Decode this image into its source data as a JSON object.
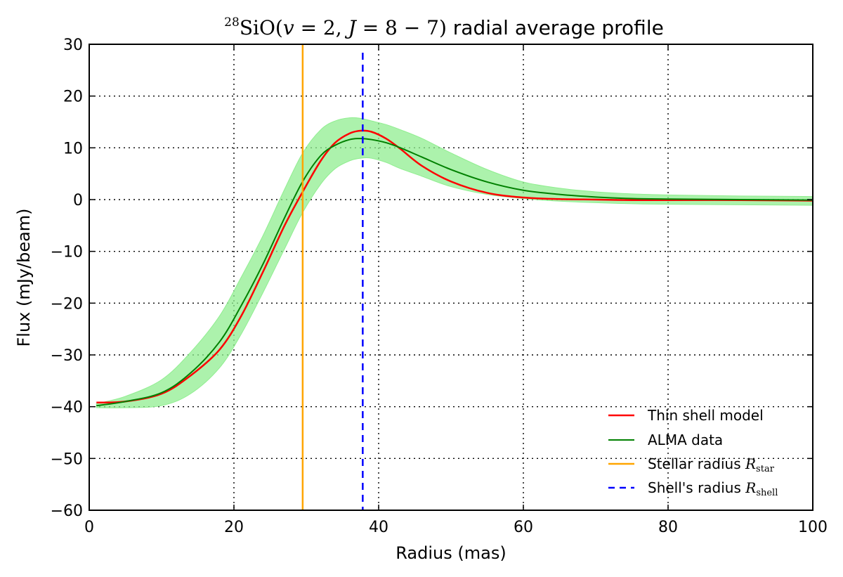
{
  "chart_data": {
    "type": "line",
    "title": {
      "superscript": "28",
      "species": "SiO",
      "open_paren": "(",
      "v_symbol": "v",
      "v_part": " = 2, ",
      "J_symbol": "J",
      "J_part": " = 8 − 7",
      "close_paren": ")",
      "suffix": " radial average profile"
    },
    "xlabel": "Radius (mas)",
    "ylabel": "Flux (mJy/beam)",
    "xlim": [
      0,
      100
    ],
    "ylim": [
      -60,
      30
    ],
    "xticks": [
      0,
      20,
      40,
      60,
      80,
      100
    ],
    "yticks": [
      -60,
      -50,
      -40,
      -30,
      -20,
      -10,
      0,
      10,
      20,
      30
    ],
    "ytick_labels": [
      "−60",
      "−50",
      "−40",
      "−30",
      "−20",
      "−10",
      "0",
      "10",
      "20",
      "30"
    ],
    "xtick_labels": [
      "0",
      "20",
      "40",
      "60",
      "80",
      "100"
    ],
    "grid": true,
    "legend_location": "lower-right",
    "colors": {
      "model": "#ff0000",
      "data": "#008000",
      "band": "#90ee90",
      "stellar": "#ffa500",
      "shell": "#0000ff"
    },
    "series": [
      {
        "name": "Thin shell model",
        "x": [
          1,
          5,
          10,
          14,
          18,
          21,
          24,
          27,
          29.5,
          32,
          34,
          36,
          37.5,
          39,
          41,
          43,
          46,
          50,
          55,
          60,
          65,
          70,
          75,
          80,
          90,
          100
        ],
        "values": [
          -39.2,
          -39,
          -37.5,
          -34,
          -29,
          -22.5,
          -14,
          -5,
          1.5,
          7.5,
          11,
          12.8,
          13.3,
          13.1,
          11.8,
          9.8,
          6.5,
          3.5,
          1.3,
          0.4,
          0.1,
          0,
          -0.1,
          -0.1,
          -0.1,
          -0.2
        ]
      },
      {
        "name": "ALMA data",
        "x": [
          1,
          5,
          10,
          14,
          18,
          21,
          24,
          27,
          29.5,
          32,
          34,
          36,
          37.5,
          39,
          41,
          43,
          46,
          50,
          55,
          60,
          65,
          70,
          75,
          80,
          90,
          100
        ],
        "values": [
          -39.8,
          -39,
          -37.3,
          -33.5,
          -27.5,
          -20.5,
          -12.5,
          -3.5,
          3.5,
          8.5,
          10.5,
          11.6,
          11.8,
          11.6,
          11,
          10,
          8.2,
          5.8,
          3.4,
          1.8,
          1,
          0.5,
          0.2,
          0.1,
          0,
          -0.1
        ],
        "band_lower": [
          -40.2,
          -40.2,
          -39.8,
          -37.5,
          -32.5,
          -26,
          -18,
          -9.5,
          -2.5,
          3,
          6,
          7.5,
          8,
          8,
          7.2,
          6,
          4.5,
          2.5,
          1,
          0.2,
          -0.3,
          -0.6,
          -0.8,
          -0.9,
          -1,
          -1.1
        ],
        "band_upper": [
          -39.4,
          -38,
          -34.8,
          -29.5,
          -22.5,
          -15,
          -7,
          2,
          9,
          13.5,
          15.2,
          15.8,
          15.7,
          15.2,
          14.5,
          13.5,
          11.8,
          9,
          5.8,
          3.4,
          2.2,
          1.5,
          1.1,
          0.9,
          0.7,
          0.6
        ]
      }
    ],
    "vlines": [
      {
        "name": "Stellar radius",
        "x": 29.5,
        "style": "solid"
      },
      {
        "name": "Shell's radius",
        "x": 37.8,
        "style": "dashed"
      }
    ],
    "legend": [
      {
        "text": "Thin shell model",
        "math": "",
        "sub": ""
      },
      {
        "text": "ALMA data",
        "math": "",
        "sub": ""
      },
      {
        "text": "Stellar radius ",
        "math": "R",
        "sub": "star"
      },
      {
        "text": "Shell's radius ",
        "math": "R",
        "sub": "shell"
      }
    ]
  }
}
